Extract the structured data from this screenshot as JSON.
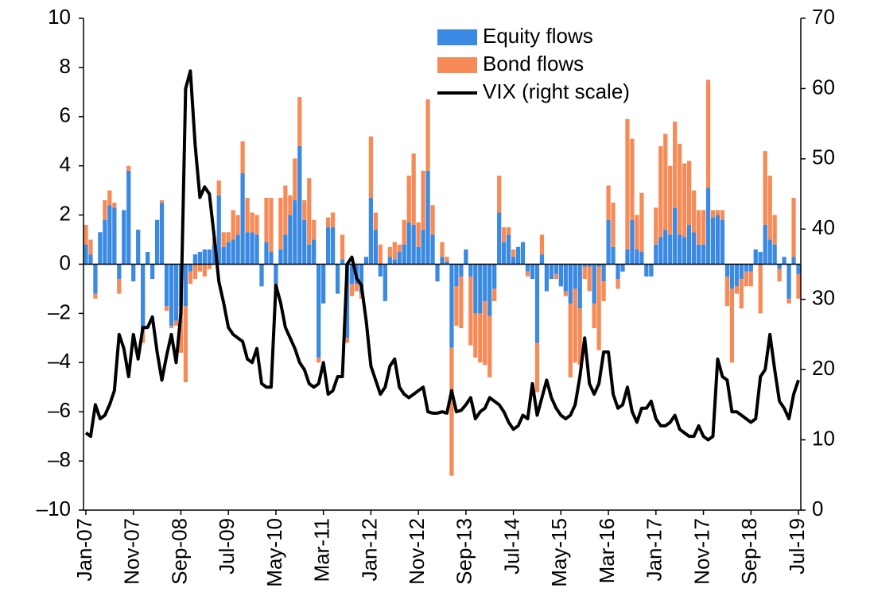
{
  "chart_data": {
    "type": "bar",
    "stacked": true,
    "legend": "top",
    "grid": false,
    "categories": [
      "Jan-07",
      null,
      null,
      null,
      null,
      null,
      null,
      null,
      null,
      null,
      "Nov-07",
      null,
      null,
      null,
      null,
      null,
      null,
      null,
      null,
      null,
      "Sep-08",
      null,
      null,
      null,
      null,
      null,
      null,
      null,
      null,
      null,
      "Jul-09",
      null,
      null,
      null,
      null,
      null,
      null,
      null,
      null,
      null,
      "May-10",
      null,
      null,
      null,
      null,
      null,
      null,
      null,
      null,
      null,
      "Mar-11",
      null,
      null,
      null,
      null,
      null,
      null,
      null,
      null,
      null,
      "Jan-12",
      null,
      null,
      null,
      null,
      null,
      null,
      null,
      null,
      null,
      "Nov-12",
      null,
      null,
      null,
      null,
      null,
      null,
      null,
      null,
      null,
      "Sep-13",
      null,
      null,
      null,
      null,
      null,
      null,
      null,
      null,
      null,
      "Jul-14",
      null,
      null,
      null,
      null,
      null,
      null,
      null,
      null,
      null,
      "May-15",
      null,
      null,
      null,
      null,
      null,
      null,
      null,
      null,
      null,
      "Mar-16",
      null,
      null,
      null,
      null,
      null,
      null,
      null,
      null,
      null,
      "Jan-17",
      null,
      null,
      null,
      null,
      null,
      null,
      null,
      null,
      null,
      "Nov-17",
      null,
      null,
      null,
      null,
      null,
      null,
      null,
      null,
      null,
      "Sep-18",
      null,
      null,
      null,
      null,
      null,
      null,
      null,
      null,
      null,
      "Jul-19"
    ],
    "series": [
      {
        "name": "Equity flows",
        "color": "#3a89e2",
        "values": [
          0.8,
          0.4,
          -1.2,
          1.3,
          1.8,
          2.4,
          2.3,
          -0.6,
          2.2,
          3.8,
          -0.7,
          1.4,
          -2.7,
          0.5,
          -0.6,
          1.8,
          2.5,
          -1.7,
          -2.5,
          -2.3,
          -1.7,
          -1.7,
          -0.3,
          0.4,
          0.5,
          0.6,
          0.6,
          0.8,
          2.8,
          0.7,
          0.9,
          1.0,
          1.2,
          3.7,
          1.3,
          1.3,
          1.2,
          -0.9,
          0.9,
          0.5,
          -0.8,
          0.6,
          1.2,
          2.0,
          2.6,
          4.8,
          1.8,
          0.8,
          1.0,
          -3.8,
          -1.6,
          1.5,
          1.5,
          -1.2,
          0.2,
          -3.0,
          -0.8,
          -0.8,
          -1.2,
          0.3,
          2.7,
          1.4,
          -0.5,
          -1.5,
          0.3,
          0.2,
          0.5,
          0.8,
          1.7,
          1.6,
          0.7,
          1.4,
          3.8,
          1.2,
          -0.7,
          0.3,
          0.1,
          -3.4,
          -0.9,
          -0.5,
          0.6,
          -0.5,
          -2.0,
          -2.0,
          -1.5,
          -2.1,
          -1.0,
          2.1,
          0.9,
          1.2,
          0.3,
          0.7,
          0.9,
          -0.3,
          -0.6,
          -3.2,
          0.4,
          -1.1,
          -0.6,
          -0.4,
          -0.9,
          -1.1,
          -1.6,
          -1.0,
          -1.8,
          -0.1,
          -0.1,
          -1.6,
          -0.1,
          -0.7,
          1.8,
          0.7,
          -0.6,
          -0.3,
          0.6,
          1.8,
          0.6,
          0.5,
          -0.5,
          -0.5,
          0.8,
          1.1,
          1.4,
          1.2,
          2.3,
          1.2,
          1.1,
          1.6,
          1.3,
          0.8,
          0.8,
          3.1,
          1.9,
          2.0,
          1.8,
          -0.5,
          -1.0,
          -0.9,
          -0.6,
          -0.3,
          -0.3,
          0.6,
          0.5,
          1.6,
          1.0,
          0.8,
          -0.2,
          0.3,
          -1.4,
          0.3,
          -0.4
        ]
      },
      {
        "name": "Bond flows",
        "color": "#f78b57",
        "values": [
          0.8,
          0.6,
          -0.2,
          0,
          0.8,
          0.6,
          0.2,
          -0.6,
          0,
          0.2,
          0,
          0,
          -0.5,
          0,
          0,
          0,
          0.1,
          -0.2,
          -0.1,
          -0.2,
          -1.9,
          -3.1,
          -0.5,
          -0.6,
          -0.3,
          -0.5,
          -0.2,
          0.3,
          0.6,
          0.6,
          0.4,
          1.2,
          0.8,
          1.3,
          1.4,
          0.8,
          0.8,
          0,
          1.8,
          2.2,
          -0.2,
          2.1,
          2.0,
          0.8,
          1.7,
          2.0,
          0.8,
          2.7,
          0.8,
          -0.2,
          0,
          0.4,
          0.6,
          0,
          1.0,
          -0.2,
          -0.5,
          -0.3,
          -0.2,
          0,
          2.5,
          0.7,
          0.8,
          0,
          0.4,
          0.7,
          0.3,
          1.0,
          1.9,
          2.9,
          1.0,
          2.4,
          2.9,
          1.2,
          0,
          0.6,
          0.2,
          -5.2,
          -1.6,
          -2.1,
          0,
          -2.8,
          -1.8,
          -2.0,
          -2.6,
          -2.5,
          -0.5,
          1.5,
          0.6,
          0.3,
          0.3,
          0,
          0,
          -0.2,
          0,
          -2.0,
          0.8,
          0,
          0,
          -0.2,
          0,
          -0.2,
          -3.0,
          -3.0,
          -2.3,
          -0.5,
          -1.0,
          -1.0,
          -3.4,
          -0.8,
          1.4,
          1.8,
          -0.4,
          0,
          5.3,
          3.3,
          1.4,
          2.4,
          0,
          0,
          1.5,
          3.7,
          3.9,
          2.8,
          3.5,
          3.7,
          3.0,
          2.6,
          1.7,
          1.4,
          1.4,
          4.4,
          0.3,
          0.2,
          0.4,
          -1.2,
          -3.0,
          -0.3,
          -1.2,
          -0.6,
          -0.6,
          0,
          -2.0,
          3.0,
          2.6,
          1.2,
          -0.5,
          0,
          -0.2,
          2.4,
          -1.0
        ]
      },
      {
        "name": "VIX (right scale)",
        "color": "#000000",
        "type": "line",
        "axis": "y2",
        "values": [
          11,
          10.5,
          15,
          13,
          13.5,
          15,
          17,
          25,
          23,
          19,
          25,
          21.5,
          26,
          26,
          27.5,
          22.5,
          18.5,
          22,
          25,
          21,
          28,
          60,
          62.5,
          52,
          44.5,
          46,
          45,
          39,
          32.5,
          29.5,
          26,
          25,
          24.5,
          24,
          21.5,
          21,
          23,
          18,
          17.5,
          17.5,
          32,
          29.5,
          26,
          24.5,
          23,
          21,
          20,
          18,
          17.5,
          18,
          21,
          16.5,
          17,
          19,
          19,
          35,
          36,
          33,
          32,
          27,
          20.5,
          18.5,
          16.5,
          17.5,
          20.5,
          21.5,
          17.5,
          16.5,
          16,
          16.5,
          17,
          17.5,
          14,
          13.8,
          13.8,
          14,
          13.8,
          17,
          14,
          14.2,
          15,
          16,
          13,
          14,
          14.5,
          16,
          15.5,
          15,
          14,
          12.5,
          11.5,
          12,
          13.5,
          13,
          18,
          13.5,
          16,
          18.5,
          16,
          14.5,
          13.5,
          13,
          13.5,
          15,
          19,
          24.5,
          18,
          16.5,
          18,
          22.5,
          22.5,
          16.5,
          14.5,
          15,
          17.5,
          14,
          12.5,
          14.5,
          14.5,
          15.5,
          13,
          12,
          12,
          12.5,
          13.5,
          11.5,
          11,
          10.5,
          10.5,
          12,
          10.5,
          10,
          10.5,
          21.5,
          19,
          18.5,
          14,
          14,
          13.5,
          13,
          12.5,
          13,
          19,
          20,
          25,
          20,
          15.5,
          14.5,
          13,
          16.5,
          18.5
        ]
      }
    ],
    "ylim": [
      -10,
      10
    ],
    "yticks": [
      {
        "value": -10,
        "label": "–10"
      },
      {
        "value": -8,
        "label": "–8"
      },
      {
        "value": -6,
        "label": "–6"
      },
      {
        "value": -4,
        "label": "–4"
      },
      {
        "value": -2,
        "label": "–2"
      },
      0,
      2,
      4,
      6,
      8,
      10
    ],
    "y2lim": [
      0,
      70
    ],
    "y2ticks": [
      0,
      10,
      20,
      30,
      40,
      50,
      60,
      70
    ]
  }
}
